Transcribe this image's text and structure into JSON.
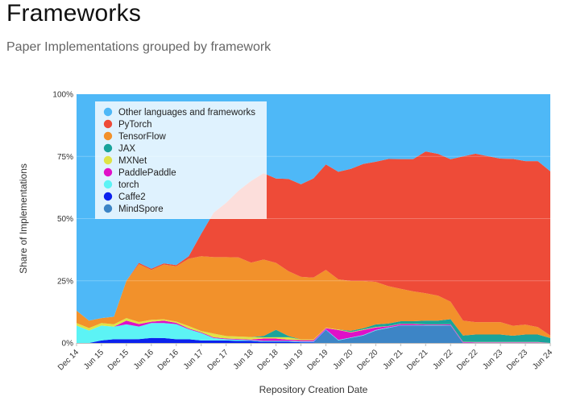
{
  "header": {
    "title": "Frameworks",
    "subtitle": "Paper Implementations grouped by framework"
  },
  "chart_data": {
    "type": "area",
    "stacked": true,
    "normalized": true,
    "xlabel": "Repository Creation Date",
    "ylabel": "Share of Implementations",
    "ylim": [
      0,
      100
    ],
    "y_ticks": [
      "0%",
      "25%",
      "50%",
      "75%",
      "100%"
    ],
    "x_tick_labels": [
      "Dec 14",
      "Jun 15",
      "Dec 15",
      "Jun 16",
      "Dec 16",
      "Jun 17",
      "Dec 17",
      "Jun 18",
      "Dec 18",
      "Jun 19",
      "Dec 19",
      "Jun 20",
      "Dec 20",
      "Jun 21",
      "Dec 21",
      "Jun 22",
      "Dec 22",
      "Jun 23",
      "Dec 23",
      "Jun 24"
    ],
    "legend_position": "top-left",
    "dates": [
      "Dec 14",
      "Mar 15",
      "Jun 15",
      "Sep 15",
      "Dec 15",
      "Mar 16",
      "Jun 16",
      "Sep 16",
      "Dec 16",
      "Mar 17",
      "Jun 17",
      "Sep 17",
      "Dec 17",
      "Mar 18",
      "Jun 18",
      "Sep 18",
      "Dec 18",
      "Mar 19",
      "Jun 19",
      "Sep 19",
      "Dec 19",
      "Mar 20",
      "Jun 20",
      "Sep 20",
      "Dec 20",
      "Mar 21",
      "Jun 21",
      "Sep 21",
      "Dec 21",
      "Mar 22",
      "Jun 22",
      "Sep 22",
      "Dec 22",
      "Mar 23",
      "Jun 23",
      "Sep 23",
      "Dec 23",
      "Mar 24",
      "Jun 24"
    ],
    "series": [
      {
        "name": "MindSpore",
        "color": "#3d85c6",
        "values": [
          0,
          0,
          0,
          0,
          0,
          0,
          0,
          0,
          0,
          0,
          0,
          0,
          0,
          0,
          0,
          0,
          0,
          0,
          0,
          0,
          5,
          1,
          2,
          3,
          5,
          6,
          7,
          7,
          7,
          7,
          7,
          0,
          0,
          0,
          0,
          0,
          0,
          0,
          0
        ]
      },
      {
        "name": "Caffe2",
        "color": "#0b22ee",
        "values": [
          0,
          0,
          1,
          1.5,
          1.5,
          1.5,
          2,
          2,
          1.5,
          1.5,
          1,
          1,
          1,
          0.8,
          0.8,
          0.5,
          0.5,
          0.5,
          0.3,
          0.3,
          0.2,
          0,
          0,
          0,
          0,
          0,
          0,
          0,
          0,
          0,
          0,
          0,
          0,
          0,
          0,
          0,
          0,
          0,
          0
        ]
      },
      {
        "name": "torch",
        "color": "#5cf3f5",
        "values": [
          7,
          5,
          6,
          5,
          6,
          5,
          6,
          6,
          6,
          4,
          3,
          1,
          0.5,
          0.5,
          0.3,
          0.3,
          0.3,
          0.3,
          0.3,
          0.3,
          0.2,
          0.2,
          0.2,
          0.2,
          0.2,
          0.2,
          0.1,
          0.1,
          0.1,
          0.1,
          0.1,
          0.1,
          0.1,
          0.1,
          0.1,
          0.1,
          0.1,
          0.1,
          0
        ]
      },
      {
        "name": "PaddlePaddle",
        "color": "#e010c8",
        "values": [
          0,
          0,
          0,
          0,
          1.5,
          1,
          0.5,
          1,
          0.5,
          0.3,
          0.3,
          0.3,
          0.3,
          0.3,
          0.3,
          1,
          1,
          0.5,
          0.5,
          0.5,
          0.5,
          4,
          2,
          2,
          1,
          0.5,
          0.5,
          0.5,
          0.3,
          0.3,
          0.3,
          0.3,
          0.2,
          0.2,
          0.2,
          0.2,
          0.2,
          0.2,
          0
        ]
      },
      {
        "name": "MXNet",
        "color": "#dfe346",
        "values": [
          1,
          1,
          1,
          1,
          1,
          0.8,
          0.8,
          0.5,
          0.5,
          1,
          0.5,
          1.5,
          1,
          1,
          1,
          0.5,
          0.5,
          1,
          0.3,
          0.3,
          0.2,
          0.2,
          0.2,
          0.2,
          0.2,
          0.1,
          0.1,
          0.1,
          0.1,
          0.1,
          0.1,
          0.1,
          0.1,
          0.1,
          0.1,
          0.1,
          0.1,
          0.1,
          0
        ]
      },
      {
        "name": "JAX",
        "color": "#1aa39a",
        "values": [
          0,
          0,
          0,
          0,
          0,
          0,
          0,
          0,
          0,
          0,
          0,
          0,
          0,
          0,
          0,
          0.5,
          3,
          0.5,
          0,
          0,
          0,
          0,
          0.5,
          0.5,
          1,
          1,
          1,
          1,
          1.5,
          1.5,
          2,
          2.5,
          3,
          3,
          3,
          2.5,
          3,
          3,
          2
        ]
      },
      {
        "name": "TensorFlow",
        "color": "#f2912b",
        "values": [
          5,
          3,
          2,
          3,
          15,
          23,
          20,
          22,
          22,
          27,
          30,
          31,
          32,
          32,
          30,
          31,
          27,
          26,
          25,
          25,
          23,
          20,
          20,
          19,
          17,
          15,
          13,
          12,
          11,
          10,
          7,
          6,
          5,
          5,
          5,
          4,
          4,
          3,
          1
        ]
      },
      {
        "name": "PyTorch",
        "color": "#ee4b38",
        "values": [
          0,
          0,
          0,
          0,
          0,
          0.5,
          0.5,
          0.5,
          0.5,
          1,
          9,
          18,
          22,
          27,
          33,
          35,
          34,
          37,
          37,
          40,
          42,
          43,
          45,
          47,
          48,
          51,
          52,
          53,
          57,
          57,
          57,
          66,
          68,
          67,
          66,
          67,
          66,
          67,
          66
        ]
      },
      {
        "name": "Other languages and frameworks",
        "color": "#4eb8f7",
        "values": [
          87,
          91,
          90,
          89,
          75,
          67,
          70,
          68,
          68,
          65,
          56,
          48,
          44,
          39,
          35,
          32,
          34,
          34,
          36,
          34,
          28,
          31,
          30,
          28,
          27,
          26,
          26,
          26,
          23,
          24,
          26,
          25,
          24,
          25,
          26,
          26,
          27,
          27,
          31
        ]
      }
    ],
    "legend": [
      {
        "name": "Other languages and frameworks",
        "color": "#4eb8f7"
      },
      {
        "name": "PyTorch",
        "color": "#ee4b38"
      },
      {
        "name": "TensorFlow",
        "color": "#f2912b"
      },
      {
        "name": "JAX",
        "color": "#1aa39a"
      },
      {
        "name": "MXNet",
        "color": "#dfe346"
      },
      {
        "name": "PaddlePaddle",
        "color": "#e010c8"
      },
      {
        "name": "torch",
        "color": "#5cf3f5"
      },
      {
        "name": "Caffe2",
        "color": "#0b22ee"
      },
      {
        "name": "MindSpore",
        "color": "#3d85c6"
      }
    ]
  }
}
